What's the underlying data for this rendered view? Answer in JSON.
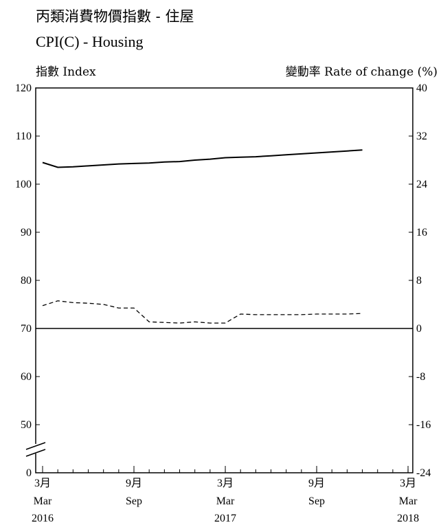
{
  "chart_data": {
    "type": "line",
    "title": "丙類消費物價指數 - 住屋",
    "subtitle": "CPI(C) - Housing",
    "ylabel_left": "指數 Index",
    "ylabel_right": "變動率 Rate of change (%)",
    "y_left": {
      "ticks": [
        0,
        50,
        60,
        70,
        80,
        90,
        100,
        110,
        120
      ],
      "tick_labels": [
        "0",
        "50",
        "60",
        "70",
        "80",
        "90",
        "100",
        "110",
        "120"
      ],
      "axis_break": true
    },
    "y_right": {
      "ticks": [
        -24,
        -16,
        -8,
        0,
        8,
        16,
        24,
        32,
        40
      ],
      "tick_labels": [
        "-24",
        "-16",
        "-8",
        "0",
        "8",
        "16",
        "24",
        "32",
        "40"
      ]
    },
    "x_ticks": [
      {
        "month_zh": "3月",
        "month": "Mar",
        "year": "2016"
      },
      {
        "month_zh": "9月",
        "month": "Sep",
        "year": ""
      },
      {
        "month_zh": "3月",
        "month": "Mar",
        "year": "2017"
      },
      {
        "month_zh": "9月",
        "month": "Sep",
        "year": ""
      },
      {
        "month_zh": "3月",
        "month": "Mar",
        "year": "2018"
      }
    ],
    "x": [
      "2016-03",
      "2016-04",
      "2016-05",
      "2016-06",
      "2016-07",
      "2016-08",
      "2016-09",
      "2016-10",
      "2016-11",
      "2016-12",
      "2017-01",
      "2017-02",
      "2017-03",
      "2017-04",
      "2017-05",
      "2017-06",
      "2017-07",
      "2017-08",
      "2017-09",
      "2017-10",
      "2017-11",
      "2017-12"
    ],
    "series": [
      {
        "axis": "left",
        "style": "solid",
        "values": [
          104.5,
          103.5,
          103.6,
          103.8,
          104.0,
          104.2,
          104.3,
          104.4,
          104.6,
          104.7,
          105.0,
          105.2,
          105.5,
          105.6,
          105.7,
          105.9,
          106.1,
          106.3,
          106.5,
          106.7,
          106.9,
          107.1
        ]
      },
      {
        "axis": "right",
        "style": "dashed",
        "values": [
          3.8,
          4.6,
          4.3,
          4.2,
          4.0,
          3.4,
          3.4,
          1.1,
          1.0,
          0.9,
          1.1,
          0.9,
          0.9,
          2.4,
          2.3,
          2.3,
          2.3,
          2.3,
          2.4,
          2.4,
          2.4,
          2.5
        ]
      }
    ],
    "grid": false,
    "reference_line": {
      "axis": "right",
      "value": 0
    }
  }
}
